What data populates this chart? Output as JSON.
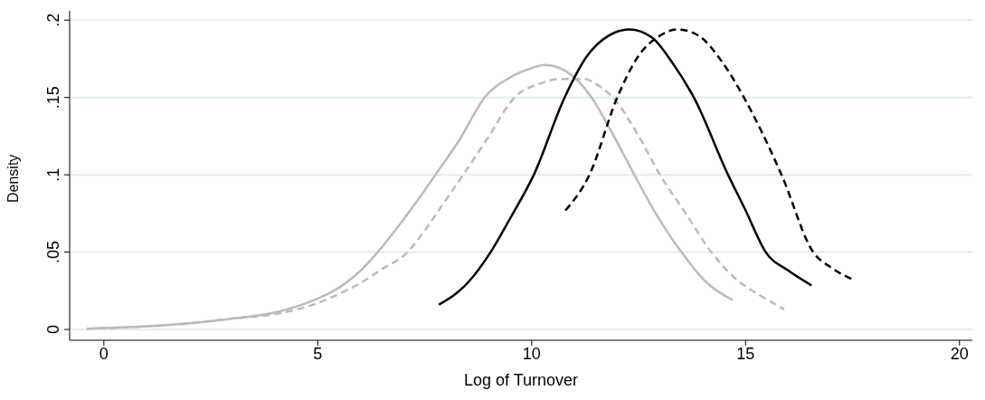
{
  "chart_data": {
    "type": "line",
    "xlabel": "Log of Turnover",
    "ylabel": "Density",
    "xlim": [
      -0.8,
      20.3
    ],
    "ylim": [
      -0.007,
      0.206
    ],
    "xticks": [
      0,
      5,
      10,
      15,
      20
    ],
    "yticks": [
      {
        "value": 0,
        "label": "0"
      },
      {
        "value": 0.05,
        "label": ".05"
      },
      {
        "value": 0.1,
        "label": ".1"
      },
      {
        "value": 0.15,
        "label": ".15"
      },
      {
        "value": 0.2,
        "label": ".2"
      }
    ],
    "grid": "y",
    "legend": false,
    "marker": "none",
    "series": [
      {
        "color": "#bbbbbb",
        "line_style": "solid",
        "x": [
          -0.4,
          1,
          2,
          3,
          4,
          5,
          5.5,
          6,
          6.4,
          7,
          7.5,
          7.75,
          8.3,
          8.9,
          9.5,
          10,
          10.3,
          10.8,
          11.4,
          11.9,
          12.4,
          12.9,
          13.5,
          14.1,
          14.7
        ],
        "values": [
          0.0005,
          0.002,
          0.004,
          0.007,
          0.011,
          0.02,
          0.027,
          0.038,
          0.05,
          0.071,
          0.09,
          0.1,
          0.122,
          0.15,
          0.163,
          0.169,
          0.171,
          0.167,
          0.15,
          0.126,
          0.1,
          0.075,
          0.05,
          0.03,
          0.019
        ]
      },
      {
        "color": "#bbbbbb",
        "line_style": "dashed",
        "x": [
          -0.4,
          1,
          2,
          3,
          4,
          5,
          5.5,
          6,
          6.5,
          7.1,
          7.5,
          8,
          8.4,
          9,
          9.6,
          10.2,
          10.7,
          11.2,
          11.6,
          11.9,
          12.5,
          13,
          13.6,
          14.2,
          14.8,
          15.4,
          15.9
        ],
        "values": [
          0.0005,
          0.002,
          0.004,
          0.007,
          0.01,
          0.017,
          0.023,
          0.03,
          0.039,
          0.05,
          0.064,
          0.084,
          0.1,
          0.125,
          0.15,
          0.159,
          0.162,
          0.162,
          0.157,
          0.15,
          0.125,
          0.1,
          0.075,
          0.05,
          0.032,
          0.021,
          0.013
        ]
      },
      {
        "color": "#000000",
        "line_style": "solid",
        "x": [
          7.83,
          8.5,
          9.04,
          9.5,
          10.05,
          10.77,
          11.3,
          11.8,
          12.28,
          12.8,
          13.3,
          13.79,
          14.59,
          15,
          15.47,
          16,
          16.54
        ],
        "values": [
          0.016,
          0.03,
          0.05,
          0.072,
          0.1,
          0.15,
          0.177,
          0.19,
          0.194,
          0.189,
          0.172,
          0.15,
          0.1,
          0.077,
          0.05,
          0.038,
          0.0285
        ]
      },
      {
        "color": "#000000",
        "line_style": "dashed",
        "x": [
          10.79,
          11.35,
          12,
          12.5,
          13,
          13.41,
          13.9,
          14.4,
          14.96,
          15.84,
          16.58,
          17,
          17.52
        ],
        "values": [
          0.077,
          0.1,
          0.15,
          0.177,
          0.19,
          0.194,
          0.19,
          0.175,
          0.15,
          0.1,
          0.05,
          0.04,
          0.032
        ]
      }
    ]
  }
}
